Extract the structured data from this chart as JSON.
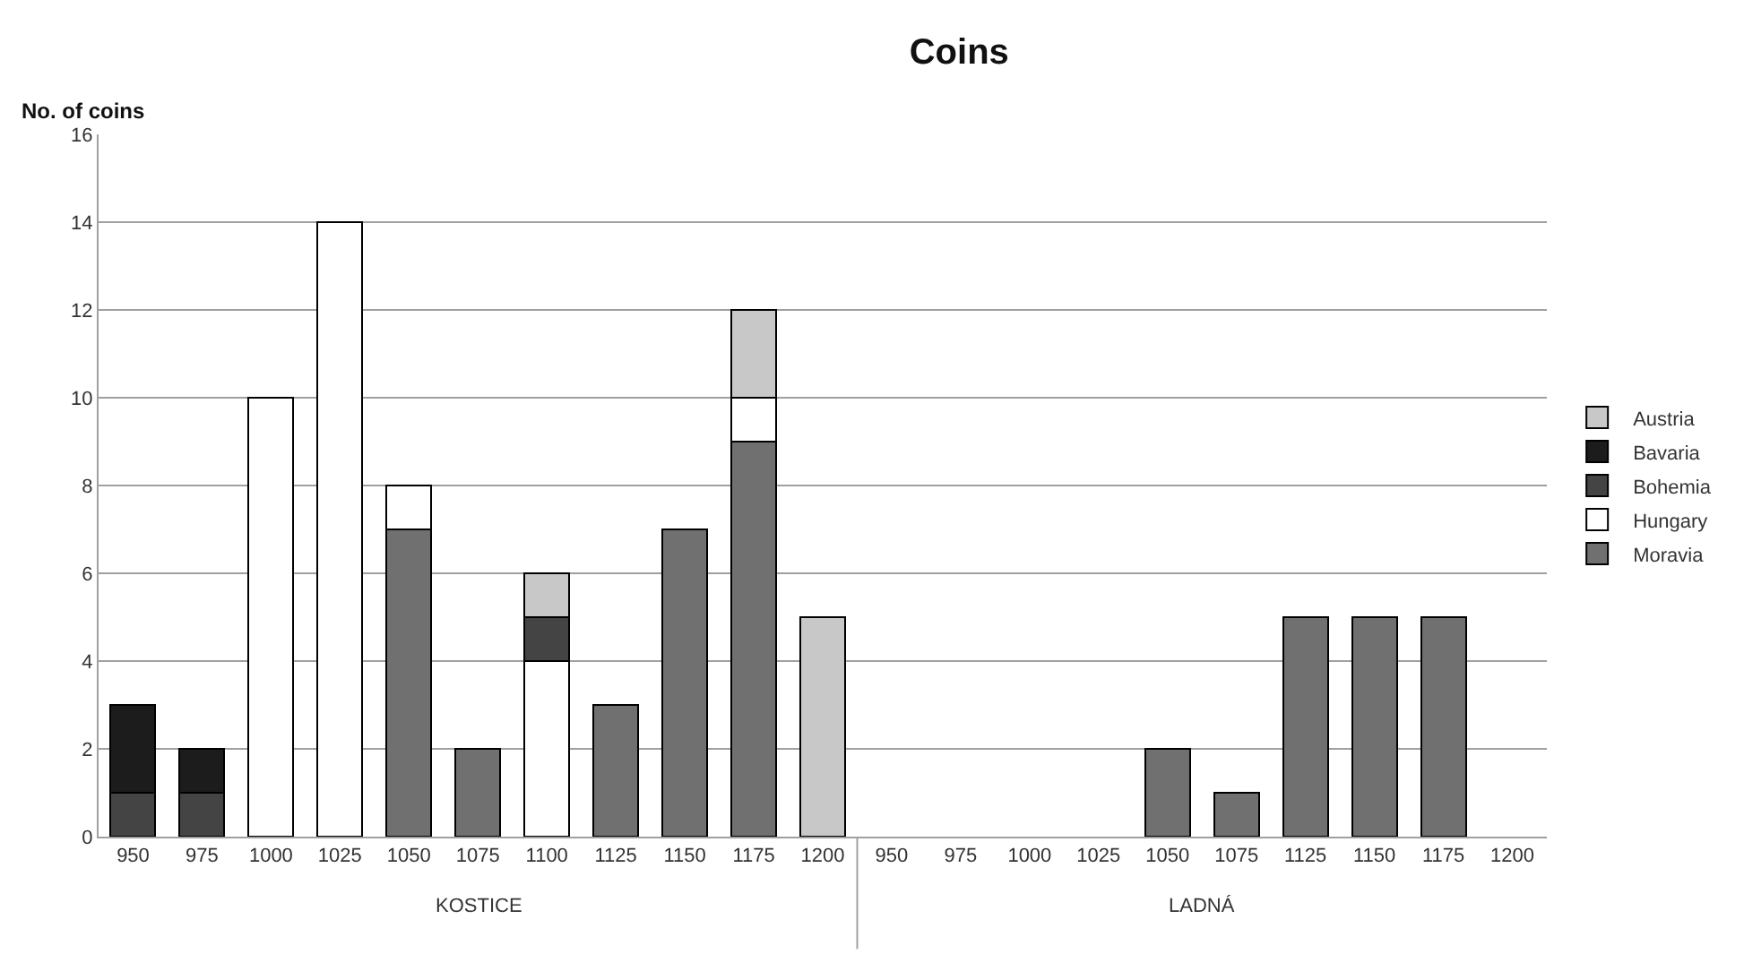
{
  "chart_data": {
    "type": "bar",
    "title": "Coins",
    "ylabel": "No. of coins",
    "stacked": true,
    "categories": [
      "950",
      "975",
      "1000",
      "1025",
      "1050",
      "1075",
      "1100",
      "1125",
      "1150",
      "1175",
      "1200",
      "950",
      "975",
      "1000",
      "1025",
      "1050",
      "1075",
      "1125",
      "1150",
      "1175",
      "1200"
    ],
    "series": [
      {
        "name": "Moravia",
        "color": "#707070",
        "values": [
          null,
          null,
          null,
          null,
          7,
          2,
          null,
          3,
          7,
          9,
          null,
          null,
          null,
          null,
          null,
          2,
          1,
          5,
          5,
          5,
          null
        ]
      },
      {
        "name": "Hungary",
        "color": "#ffffff",
        "values": [
          null,
          null,
          10,
          14,
          1,
          null,
          4,
          null,
          null,
          1,
          null,
          null,
          null,
          null,
          null,
          null,
          null,
          null,
          null,
          null,
          null
        ]
      },
      {
        "name": "Bohemia",
        "color": "#444444",
        "values": [
          1,
          1,
          null,
          null,
          null,
          null,
          1,
          null,
          null,
          null,
          null,
          null,
          null,
          null,
          null,
          null,
          null,
          null,
          null,
          null,
          null
        ]
      },
      {
        "name": "Bavaria",
        "color": "#1c1c1c",
        "values": [
          2,
          1,
          null,
          null,
          null,
          null,
          null,
          null,
          null,
          null,
          null,
          null,
          null,
          null,
          null,
          null,
          null,
          null,
          null,
          null,
          null
        ]
      },
      {
        "name": "Austria",
        "color": "#c8c8c8",
        "values": [
          null,
          null,
          null,
          null,
          null,
          null,
          1,
          null,
          null,
          2,
          5,
          null,
          null,
          null,
          null,
          null,
          null,
          null,
          null,
          null,
          null
        ]
      }
    ],
    "annotations": [
      "KOSTICE",
      "LADNÁ"
    ],
    "ylim": [
      0,
      16
    ],
    "yticks": [
      0,
      2,
      4,
      6,
      8,
      10,
      12,
      14,
      16
    ],
    "grid": "y",
    "legend": "right"
  }
}
